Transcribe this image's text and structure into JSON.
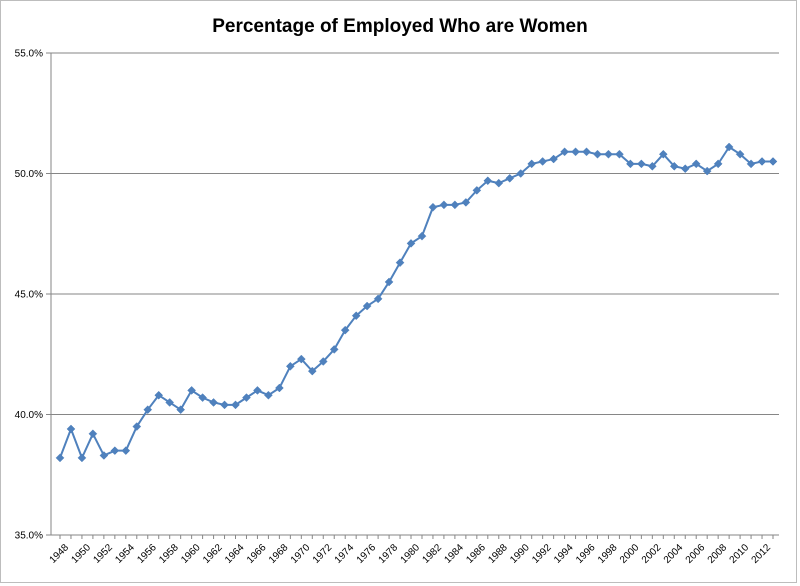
{
  "chart_data": {
    "type": "line",
    "title": "Percentage of Employed Who are Women",
    "xlabel": "",
    "ylabel": "",
    "ylim": [
      35,
      55
    ],
    "y_ticks": [
      "35.0%",
      "40.0%",
      "45.0%",
      "50.0%",
      "55.0%"
    ],
    "y_tick_values": [
      35,
      40,
      45,
      50,
      55
    ],
    "x_tick_labels": [
      "1948",
      "1950",
      "1952",
      "1954",
      "1956",
      "1958",
      "1960",
      "1962",
      "1964",
      "1966",
      "1968",
      "1970",
      "1972",
      "1974",
      "1976",
      "1978",
      "1980",
      "1982",
      "1984",
      "1986",
      "1988",
      "1990",
      "1992",
      "1994",
      "1996",
      "1998",
      "2000",
      "2002",
      "2004",
      "2006",
      "2008",
      "2010",
      "2012"
    ],
    "grid": true,
    "legend": "none",
    "colors": {
      "series": "#4f81bd",
      "grid": "#868686",
      "axis": "#868686"
    },
    "x": [
      1948,
      1949,
      1950,
      1951,
      1952,
      1953,
      1954,
      1955,
      1956,
      1957,
      1958,
      1959,
      1960,
      1961,
      1962,
      1963,
      1964,
      1965,
      1966,
      1967,
      1968,
      1969,
      1970,
      1971,
      1972,
      1973,
      1974,
      1975,
      1976,
      1977,
      1978,
      1979,
      1980,
      1981,
      1982,
      1983,
      1984,
      1985,
      1986,
      1987,
      1988,
      1989,
      1990,
      1991,
      1992,
      1993,
      1994,
      1995,
      1996,
      1997,
      1998,
      1999,
      2000,
      2001,
      2002,
      2003,
      2004,
      2005,
      2006,
      2007,
      2008,
      2009,
      2010,
      2011,
      2012,
      2013
    ],
    "series": [
      {
        "values": [
          38.2,
          39.4,
          38.2,
          39.2,
          38.3,
          38.5,
          38.5,
          39.5,
          40.2,
          40.8,
          40.5,
          40.2,
          41.0,
          40.7,
          40.5,
          40.4,
          40.4,
          40.7,
          41.0,
          40.8,
          41.1,
          42.0,
          42.3,
          41.8,
          42.2,
          42.7,
          43.5,
          44.1,
          44.5,
          44.8,
          45.5,
          46.3,
          47.1,
          47.4,
          48.6,
          48.7,
          48.7,
          48.8,
          49.3,
          49.7,
          49.6,
          49.8,
          50.0,
          50.4,
          50.5,
          50.6,
          50.9,
          50.9,
          50.9,
          50.8,
          50.8,
          50.8,
          50.4,
          50.4,
          50.3,
          50.8,
          50.3,
          50.2,
          50.4,
          50.1,
          50.4,
          51.1,
          50.8,
          50.4,
          50.5,
          50.5
        ]
      }
    ]
  }
}
